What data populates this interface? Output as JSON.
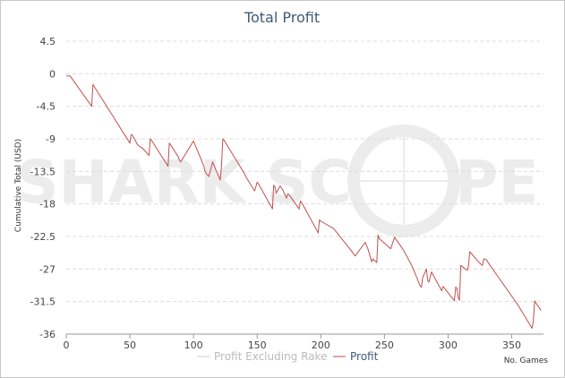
{
  "chart_data": {
    "type": "line",
    "title": "Total Profit",
    "xlabel": "No. Games",
    "ylabel": "Cumulative Total (USD)",
    "xlim": [
      0,
      375
    ],
    "ylim": [
      -36,
      4.5
    ],
    "x_ticks": [
      0,
      50,
      100,
      150,
      200,
      250,
      300,
      350
    ],
    "x_tick_labels": [
      "0",
      "50",
      "100",
      "150",
      "200",
      "250",
      "300",
      "350"
    ],
    "y_ticks": [
      4.5,
      0,
      -4.5,
      -9,
      -13.5,
      -18,
      -22.5,
      -27,
      -31.5,
      -36
    ],
    "y_tick_labels": [
      "4.5",
      "0",
      "-4.5",
      "-9",
      "-13.5",
      "-18",
      "-22.5",
      "-27",
      "-31.5",
      "-36"
    ],
    "grid": true,
    "legend_position": "bottom-center",
    "watermark": "SHARK SCOPE",
    "series": [
      {
        "name": "Profit Excluding Rake",
        "color": "#cccccc",
        "x": [],
        "y": []
      },
      {
        "name": "Profit",
        "color": "#c0504d",
        "x": [
          0,
          3,
          20,
          21,
          50,
          51,
          52,
          56,
          58,
          60,
          65,
          66,
          67,
          80,
          81,
          82,
          88,
          89,
          90,
          100,
          108,
          109,
          110,
          112,
          115,
          118,
          121,
          122,
          123,
          124,
          140,
          141,
          142,
          148,
          150,
          151,
          162,
          163,
          164,
          165,
          168,
          170,
          173,
          174,
          175,
          183,
          184,
          185,
          198,
          199,
          200,
          209,
          210,
          211,
          225,
          226,
          227,
          235,
          236,
          237,
          240,
          241,
          242,
          244,
          245,
          246,
          255,
          258,
          259,
          260,
          265,
          272,
          278,
          279,
          280,
          283,
          284,
          285,
          287,
          295,
          296,
          297,
          305,
          306,
          307,
          308,
          309,
          310,
          315,
          316,
          317,
          325,
          327,
          328,
          330,
          333,
          345,
          355,
          366,
          367,
          368,
          369,
          373
        ],
        "y": [
          -0.3,
          -0.3,
          -4.5,
          -1.5,
          -9.6,
          -8.4,
          -8.5,
          -9.8,
          -10.1,
          -10.3,
          -11.3,
          -9.0,
          -9.2,
          -12.8,
          -9.6,
          -9.8,
          -11.5,
          -12.0,
          -12.2,
          -9.3,
          -12.7,
          -13.5,
          -13.8,
          -14.2,
          -12.2,
          -13.5,
          -14.7,
          -12.8,
          -9.0,
          -9.2,
          -13.8,
          -14.2,
          -14.5,
          -16.2,
          -15.0,
          -15.2,
          -18.7,
          -15.4,
          -15.6,
          -16.5,
          -15.5,
          -16.0,
          -17.2,
          -16.6,
          -16.7,
          -18.7,
          -17.6,
          -17.8,
          -22.0,
          -20.2,
          -20.4,
          -21.3,
          -21.4,
          -21.6,
          -24.7,
          -25.0,
          -25.2,
          -23.3,
          -23.8,
          -24.2,
          -26.0,
          -25.6,
          -25.8,
          -26.1,
          -22.3,
          -22.8,
          -24.2,
          -22.6,
          -22.9,
          -23.1,
          -24.4,
          -26.7,
          -29.3,
          -29.5,
          -28.2,
          -27.0,
          -28.6,
          -28.8,
          -27.4,
          -30.0,
          -29.4,
          -29.6,
          -31.4,
          -29.5,
          -29.7,
          -31.0,
          -31.3,
          -26.5,
          -27.2,
          -26.7,
          -24.6,
          -26.2,
          -26.5,
          -25.6,
          -25.7,
          -26.5,
          -29.5,
          -32.0,
          -35.2,
          -34.2,
          -31.4,
          -31.7,
          -32.7
        ]
      }
    ]
  }
}
